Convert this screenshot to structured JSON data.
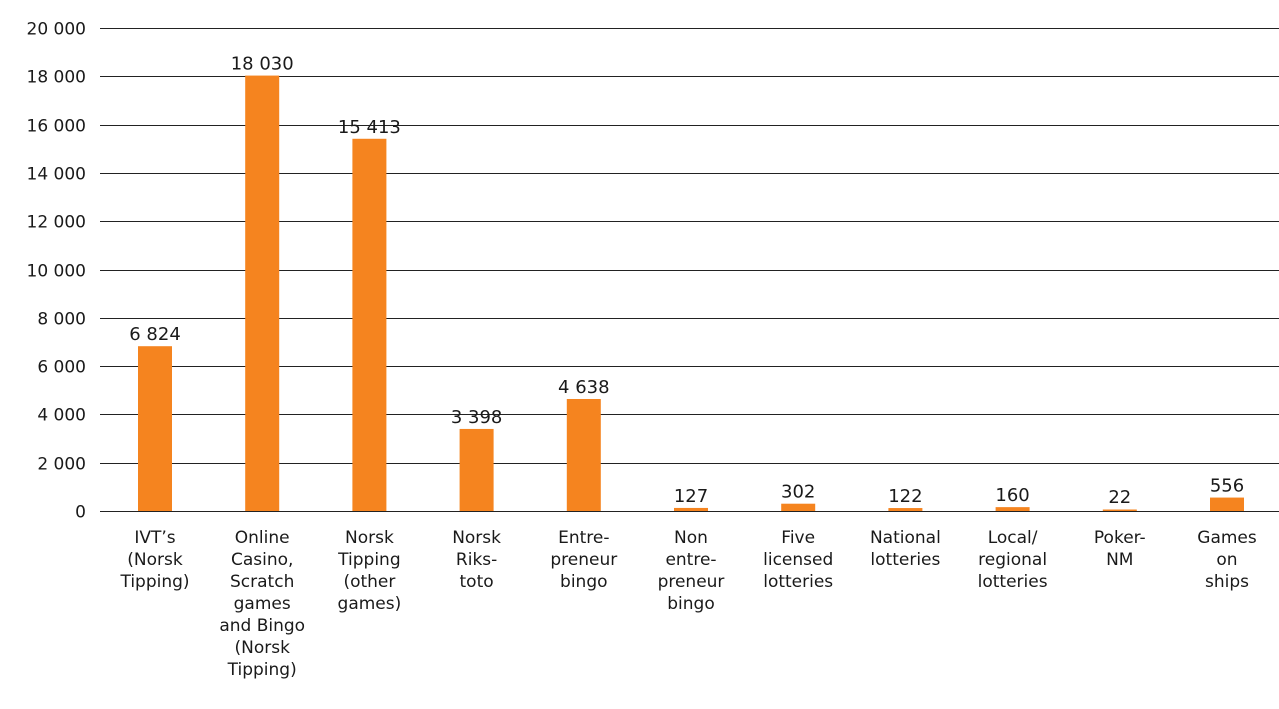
{
  "chart_data": {
    "type": "bar",
    "title": "",
    "xlabel": "",
    "ylabel": "",
    "ylim": [
      0,
      20000
    ],
    "y_ticks": [
      "0",
      "2 000",
      "4 000",
      "6 000",
      "8 000",
      "10 000",
      "12 000",
      "14 000",
      "16 000",
      "18 000",
      "20 000"
    ],
    "y_tick_values": [
      0,
      2000,
      4000,
      6000,
      8000,
      10000,
      12000,
      14000,
      16000,
      18000,
      20000
    ],
    "grid": true,
    "legend": "none",
    "bar_color": "#f5841f",
    "categories": [
      [
        "IVT’s",
        "(Norsk",
        "Tipping)"
      ],
      [
        "Online",
        "Casino,",
        "Scratch",
        "games",
        "and Bingo",
        "(Norsk",
        "Tipping)"
      ],
      [
        "Norsk",
        "Tipping",
        "(other",
        "games)"
      ],
      [
        "Norsk",
        "Riks-",
        "toto"
      ],
      [
        "Entre-",
        "preneur",
        "bingo"
      ],
      [
        "Non",
        "entre-",
        "preneur",
        "bingo"
      ],
      [
        "Five",
        "licensed",
        "lotteries"
      ],
      [
        "National",
        "lotteries"
      ],
      [
        "Local/",
        "regional",
        "lotteries"
      ],
      [
        "Poker-",
        "NM"
      ],
      [
        "Games",
        "on",
        "ships"
      ]
    ],
    "values": [
      6824,
      18030,
      15413,
      3398,
      4638,
      127,
      302,
      122,
      160,
      22,
      556
    ],
    "value_labels": [
      "6 824",
      "18 030",
      "15 413",
      "3 398",
      "4 638",
      "127",
      "302",
      "122",
      "160",
      "22",
      "556"
    ]
  }
}
